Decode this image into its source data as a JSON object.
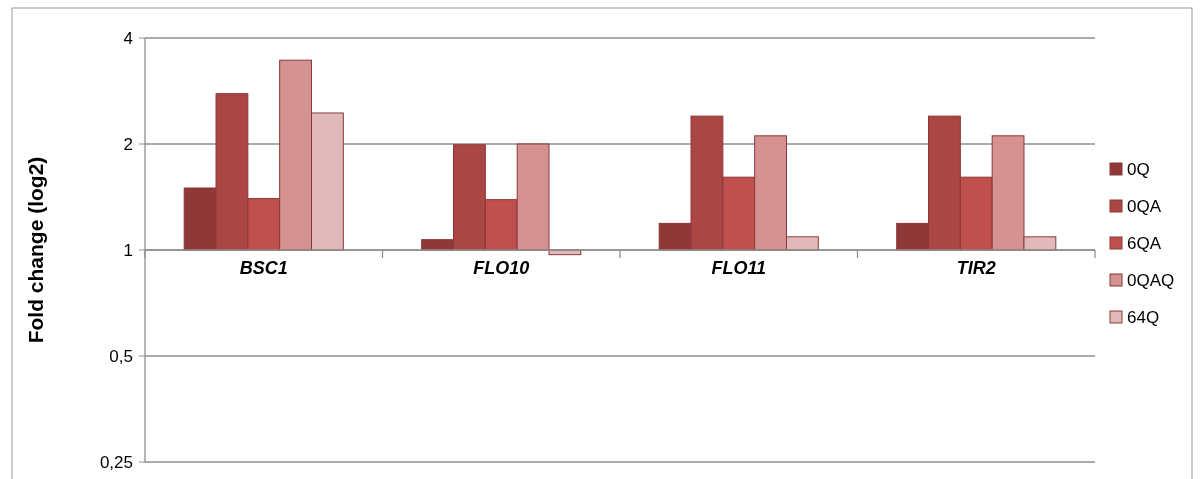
{
  "chart_data": {
    "type": "bar",
    "ylabel": "Fold change (log2)",
    "log": true,
    "categories": [
      "BSC1",
      "FLO10",
      "FLO11",
      "TIR2"
    ],
    "series": [
      {
        "name": "0Q",
        "color": "#8e3837",
        "base": [
          1,
          1,
          1,
          1
        ],
        "values": [
          0.5,
          0.07,
          0.19,
          0.19
        ]
      },
      {
        "name": "0QA",
        "color": "#aa4644",
        "base": [
          1,
          1,
          1,
          1
        ],
        "values": [
          1.78,
          0.99,
          1.4,
          1.4
        ]
      },
      {
        "name": "6QA",
        "color": "#c0504d",
        "base": [
          1,
          1,
          1,
          1
        ],
        "values": [
          0.4,
          0.39,
          0.61,
          0.61
        ]
      },
      {
        "name": "0QAQ",
        "color": "#d49392",
        "base": [
          1,
          1,
          1,
          1
        ],
        "values": [
          2.46,
          1.0,
          1.11,
          1.11
        ]
      },
      {
        "name": "64Q",
        "color": "#e0babb",
        "base": [
          1,
          1,
          1,
          1
        ],
        "values": [
          1.45,
          -0.03,
          0.09,
          0.09
        ]
      }
    ],
    "ylim": [
      0.25,
      4
    ],
    "yticks": [
      {
        "value": 0.25,
        "label": "0,25"
      },
      {
        "value": 0.5,
        "label": "0,5"
      },
      1,
      2,
      4
    ],
    "grid": "y",
    "legend": "right"
  }
}
